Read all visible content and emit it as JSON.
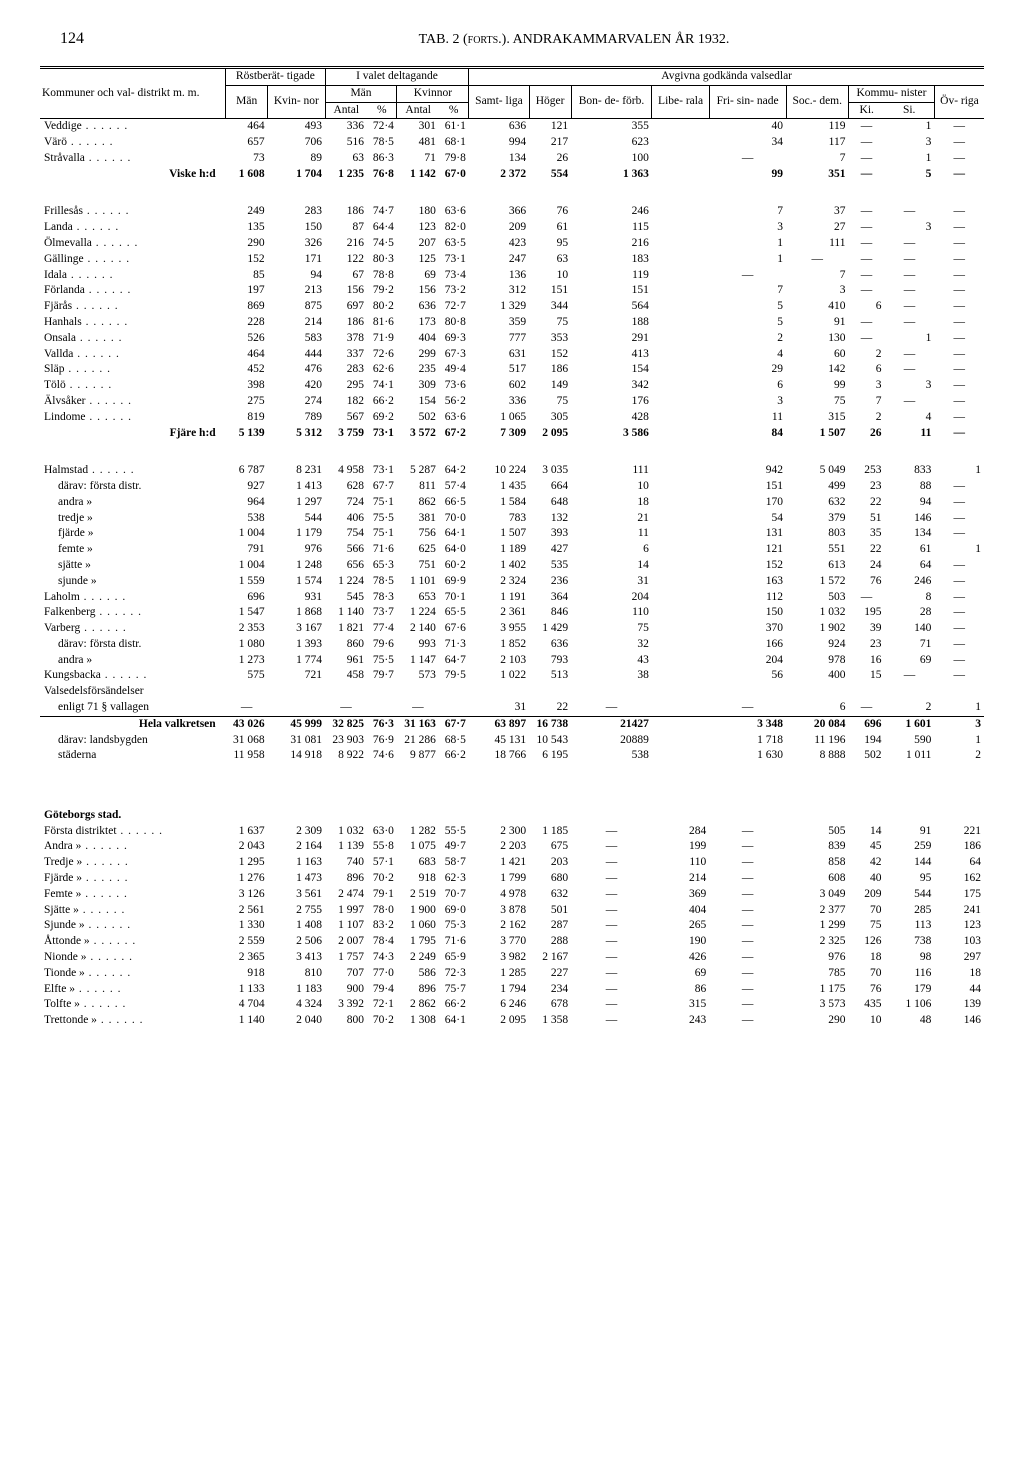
{
  "page_number": "124",
  "page_title": "TAB. 2 (forts.).  ANDRAKAMMARVALEN ÅR 1932.",
  "headers": {
    "group1": "Röstberät-\ntigade",
    "group2": "I valet deltagande",
    "group3": "Avgivna godkända valsedlar",
    "rowhead": "Kommuner och val-\ndistrikt m. m.",
    "man": "Män",
    "kvinnor": "Kvin-\nnor",
    "man2": "Män",
    "kvinnor2": "Kvinnor",
    "antal": "Antal",
    "pct": "%",
    "samtliga": "Samt-\nliga",
    "hoger": "Höger",
    "bonde": "Bon-\nde-\nförb.",
    "libe": "Libe-\nrala",
    "frisin": "Fri-\nsin-\nnade",
    "socdem": "Soc.-\ndem.",
    "kommun": "Kommu-\nnister",
    "ki": "Ki.",
    "si": "Si.",
    "ovriga": "Öv-\nriga"
  },
  "rows": [
    {
      "l": "Veddige",
      "c": [
        "464",
        "493",
        "336",
        "72·4",
        "301",
        "61·1",
        "636",
        "121",
        "355",
        "",
        "40",
        "119",
        "—",
        "1",
        "—"
      ]
    },
    {
      "l": "Värö",
      "c": [
        "657",
        "706",
        "516",
        "78·5",
        "481",
        "68·1",
        "994",
        "217",
        "623",
        "",
        "34",
        "117",
        "—",
        "3",
        "—"
      ]
    },
    {
      "l": "Stråvalla",
      "c": [
        "73",
        "89",
        "63",
        "86·3",
        "71",
        "79·8",
        "134",
        "26",
        "100",
        "",
        "—",
        "7",
        "—",
        "1",
        "—"
      ]
    },
    {
      "l": "Viske h:d",
      "bold": true,
      "indent": true,
      "c": [
        "1 608",
        "1 704",
        "1 235",
        "76·8",
        "1 142",
        "67·0",
        "2 372",
        "554",
        "1 363",
        "",
        "99",
        "351",
        "—",
        "5",
        "—"
      ]
    },
    {
      "gap": true
    },
    {
      "l": "Frillesås",
      "c": [
        "249",
        "283",
        "186",
        "74·7",
        "180",
        "63·6",
        "366",
        "76",
        "246",
        "",
        "7",
        "37",
        "—",
        "—",
        "—"
      ]
    },
    {
      "l": "Landa",
      "c": [
        "135",
        "150",
        "87",
        "64·4",
        "123",
        "82·0",
        "209",
        "61",
        "115",
        "",
        "3",
        "27",
        "—",
        "3",
        "—"
      ]
    },
    {
      "l": "Ölmevalla",
      "c": [
        "290",
        "326",
        "216",
        "74·5",
        "207",
        "63·5",
        "423",
        "95",
        "216",
        "",
        "1",
        "111",
        "—",
        "—",
        "—"
      ]
    },
    {
      "l": "Gällinge",
      "c": [
        "152",
        "171",
        "122",
        "80·3",
        "125",
        "73·1",
        "247",
        "63",
        "183",
        "",
        "1",
        "—",
        "—",
        "—",
        "—"
      ]
    },
    {
      "l": "Idala",
      "c": [
        "85",
        "94",
        "67",
        "78·8",
        "69",
        "73·4",
        "136",
        "10",
        "119",
        "",
        "—",
        "7",
        "—",
        "—",
        "—"
      ]
    },
    {
      "l": "Förlanda",
      "c": [
        "197",
        "213",
        "156",
        "79·2",
        "156",
        "73·2",
        "312",
        "151",
        "151",
        "",
        "7",
        "3",
        "—",
        "—",
        "—"
      ]
    },
    {
      "l": "Fjärås",
      "c": [
        "869",
        "875",
        "697",
        "80·2",
        "636",
        "72·7",
        "1 329",
        "344",
        "564",
        "",
        "5",
        "410",
        "6",
        "—",
        "—"
      ]
    },
    {
      "l": "Hanhals",
      "c": [
        "228",
        "214",
        "186",
        "81·6",
        "173",
        "80·8",
        "359",
        "75",
        "188",
        "",
        "5",
        "91",
        "—",
        "—",
        "—"
      ]
    },
    {
      "l": "Onsala",
      "c": [
        "526",
        "583",
        "378",
        "71·9",
        "404",
        "69·3",
        "777",
        "353",
        "291",
        "",
        "2",
        "130",
        "—",
        "1",
        "—"
      ]
    },
    {
      "l": "Vallda",
      "c": [
        "464",
        "444",
        "337",
        "72·6",
        "299",
        "67·3",
        "631",
        "152",
        "413",
        "",
        "4",
        "60",
        "2",
        "—",
        "—"
      ]
    },
    {
      "l": "Släp",
      "c": [
        "452",
        "476",
        "283",
        "62·6",
        "235",
        "49·4",
        "517",
        "186",
        "154",
        "",
        "29",
        "142",
        "6",
        "—",
        "—"
      ]
    },
    {
      "l": "Tölö",
      "c": [
        "398",
        "420",
        "295",
        "74·1",
        "309",
        "73·6",
        "602",
        "149",
        "342",
        "",
        "6",
        "99",
        "3",
        "3",
        "—"
      ]
    },
    {
      "l": "Älvsåker",
      "c": [
        "275",
        "274",
        "182",
        "66·2",
        "154",
        "56·2",
        "336",
        "75",
        "176",
        "",
        "3",
        "75",
        "7",
        "—",
        "—"
      ]
    },
    {
      "l": "Lindome",
      "c": [
        "819",
        "789",
        "567",
        "69·2",
        "502",
        "63·6",
        "1 065",
        "305",
        "428",
        "",
        "11",
        "315",
        "2",
        "4",
        "—"
      ]
    },
    {
      "l": "Fjäre h:d",
      "bold": true,
      "indent": true,
      "c": [
        "5 139",
        "5 312",
        "3 759",
        "73·1",
        "3 572",
        "67·2",
        "7 309",
        "2 095",
        "3 586",
        "",
        "84",
        "1 507",
        "26",
        "11",
        "—"
      ]
    },
    {
      "gap": true
    },
    {
      "l": "Halmstad",
      "c": [
        "6 787",
        "8 231",
        "4 958",
        "73·1",
        "5 287",
        "64·2",
        "10 224",
        "3 035",
        "111",
        "",
        "942",
        "5 049",
        "253",
        "833",
        "1"
      ]
    },
    {
      "l": "därav: första distr.",
      "sub": true,
      "c": [
        "927",
        "1 413",
        "628",
        "67·7",
        "811",
        "57·4",
        "1 435",
        "664",
        "10",
        "",
        "151",
        "499",
        "23",
        "88",
        "—"
      ]
    },
    {
      "l": "andra   »",
      "sub": true,
      "c": [
        "964",
        "1 297",
        "724",
        "75·1",
        "862",
        "66·5",
        "1 584",
        "648",
        "18",
        "",
        "170",
        "632",
        "22",
        "94",
        "—"
      ]
    },
    {
      "l": "tredje   »",
      "sub": true,
      "c": [
        "538",
        "544",
        "406",
        "75·5",
        "381",
        "70·0",
        "783",
        "132",
        "21",
        "",
        "54",
        "379",
        "51",
        "146",
        "—"
      ]
    },
    {
      "l": "fjärde   »",
      "sub": true,
      "c": [
        "1 004",
        "1 179",
        "754",
        "75·1",
        "756",
        "64·1",
        "1 507",
        "393",
        "11",
        "",
        "131",
        "803",
        "35",
        "134",
        "—"
      ]
    },
    {
      "l": "femte   »",
      "sub": true,
      "c": [
        "791",
        "976",
        "566",
        "71·6",
        "625",
        "64·0",
        "1 189",
        "427",
        "6",
        "",
        "121",
        "551",
        "22",
        "61",
        "1"
      ]
    },
    {
      "l": "sjätte   »",
      "sub": true,
      "c": [
        "1 004",
        "1 248",
        "656",
        "65·3",
        "751",
        "60·2",
        "1 402",
        "535",
        "14",
        "",
        "152",
        "613",
        "24",
        "64",
        "—"
      ]
    },
    {
      "l": "sjunde   »",
      "sub": true,
      "c": [
        "1 559",
        "1 574",
        "1 224",
        "78·5",
        "1 101",
        "69·9",
        "2 324",
        "236",
        "31",
        "",
        "163",
        "1 572",
        "76",
        "246",
        "—"
      ]
    },
    {
      "l": "Laholm",
      "c": [
        "696",
        "931",
        "545",
        "78·3",
        "653",
        "70·1",
        "1 191",
        "364",
        "204",
        "",
        "112",
        "503",
        "—",
        "8",
        "—"
      ]
    },
    {
      "l": "Falkenberg",
      "c": [
        "1 547",
        "1 868",
        "1 140",
        "73·7",
        "1 224",
        "65·5",
        "2 361",
        "846",
        "110",
        "",
        "150",
        "1 032",
        "195",
        "28",
        "—"
      ]
    },
    {
      "l": "Varberg",
      "c": [
        "2 353",
        "3 167",
        "1 821",
        "77·4",
        "2 140",
        "67·6",
        "3 955",
        "1 429",
        "75",
        "",
        "370",
        "1 902",
        "39",
        "140",
        "—"
      ]
    },
    {
      "l": "därav: första distr.",
      "sub": true,
      "c": [
        "1 080",
        "1 393",
        "860",
        "79·6",
        "993",
        "71·3",
        "1 852",
        "636",
        "32",
        "",
        "166",
        "924",
        "23",
        "71",
        "—"
      ]
    },
    {
      "l": "andra   »",
      "sub": true,
      "c": [
        "1 273",
        "1 774",
        "961",
        "75·5",
        "1 147",
        "64·7",
        "2 103",
        "793",
        "43",
        "",
        "204",
        "978",
        "16",
        "69",
        "—"
      ]
    },
    {
      "l": "Kungsbacka",
      "c": [
        "575",
        "721",
        "458",
        "79·7",
        "573",
        "79·5",
        "1 022",
        "513",
        "38",
        "",
        "56",
        "400",
        "15",
        "—",
        "—"
      ]
    },
    {
      "l": "Valsedelsförsändelser",
      "nodots": true,
      "c": [
        "",
        "",
        "",
        "",
        "",
        "",
        "",
        "",
        "",
        "",
        "",
        "",
        "",
        "",
        ""
      ]
    },
    {
      "l": "enligt 71 § vallagen",
      "nodots": true,
      "sub": true,
      "c": [
        "—",
        "",
        "—",
        "",
        "—",
        "",
        "31",
        "22",
        "—",
        "",
        "—",
        "6",
        "—",
        "2",
        "1"
      ]
    },
    {
      "l": "Hela valkretsen",
      "bold": true,
      "indent": true,
      "thick": true,
      "c": [
        "43 026",
        "45 999",
        "32 825",
        "76·3",
        "31 163",
        "67·7",
        "63 897",
        "16 738",
        "21427",
        "",
        "3 348",
        "20 084",
        "696",
        "1 601",
        "3"
      ]
    },
    {
      "l": "därav: landsbygden",
      "sub": true,
      "c": [
        "31 068",
        "31 081",
        "23 903",
        "76·9",
        "21 286",
        "68·5",
        "45 131",
        "10 543",
        "20889",
        "",
        "1 718",
        "11 196",
        "194",
        "590",
        "1"
      ]
    },
    {
      "l": "städerna",
      "sub": true,
      "c": [
        "11 958",
        "14 918",
        "8 922",
        "74·6",
        "9 877",
        "66·2",
        "18 766",
        "6 195",
        "538",
        "",
        "1 630",
        "8 888",
        "502",
        "1 011",
        "2"
      ]
    },
    {
      "gap": true
    },
    {
      "gap": true
    },
    {
      "l": "Göteborgs stad.",
      "bold": true,
      "nodots": true,
      "c": [
        "",
        "",
        "",
        "",
        "",
        "",
        "",
        "",
        "",
        "",
        "",
        "",
        "",
        "",
        ""
      ]
    },
    {
      "l": "Första   distriktet",
      "c": [
        "1 637",
        "2 309",
        "1 032",
        "63·0",
        "1 282",
        "55·5",
        "2 300",
        "1 185",
        "—",
        "284",
        "—",
        "505",
        "14",
        "91",
        "221"
      ]
    },
    {
      "l": "Andra      »",
      "c": [
        "2 043",
        "2 164",
        "1 139",
        "55·8",
        "1 075",
        "49·7",
        "2 203",
        "675",
        "—",
        "199",
        "—",
        "839",
        "45",
        "259",
        "186"
      ]
    },
    {
      "l": "Tredje      »",
      "c": [
        "1 295",
        "1 163",
        "740",
        "57·1",
        "683",
        "58·7",
        "1 421",
        "203",
        "—",
        "110",
        "—",
        "858",
        "42",
        "144",
        "64"
      ]
    },
    {
      "l": "Fjärde      »",
      "c": [
        "1 276",
        "1 473",
        "896",
        "70·2",
        "918",
        "62·3",
        "1 799",
        "680",
        "—",
        "214",
        "—",
        "608",
        "40",
        "95",
        "162"
      ]
    },
    {
      "l": "Femte      »",
      "c": [
        "3 126",
        "3 561",
        "2 474",
        "79·1",
        "2 519",
        "70·7",
        "4 978",
        "632",
        "—",
        "369",
        "—",
        "3 049",
        "209",
        "544",
        "175"
      ]
    },
    {
      "l": "Sjätte      »",
      "c": [
        "2 561",
        "2 755",
        "1 997",
        "78·0",
        "1 900",
        "69·0",
        "3 878",
        "501",
        "—",
        "404",
        "—",
        "2 377",
        "70",
        "285",
        "241"
      ]
    },
    {
      "l": "Sjunde      »",
      "c": [
        "1 330",
        "1 408",
        "1 107",
        "83·2",
        "1 060",
        "75·3",
        "2 162",
        "287",
        "—",
        "265",
        "—",
        "1 299",
        "75",
        "113",
        "123"
      ]
    },
    {
      "l": "Åttonde      »",
      "c": [
        "2 559",
        "2 506",
        "2 007",
        "78·4",
        "1 795",
        "71·6",
        "3 770",
        "288",
        "—",
        "190",
        "—",
        "2 325",
        "126",
        "738",
        "103"
      ]
    },
    {
      "l": "Nionde      »",
      "c": [
        "2 365",
        "3 413",
        "1 757",
        "74·3",
        "2 249",
        "65·9",
        "3 982",
        "2 167",
        "—",
        "426",
        "—",
        "976",
        "18",
        "98",
        "297"
      ]
    },
    {
      "l": "Tionde      »",
      "c": [
        "918",
        "810",
        "707",
        "77·0",
        "586",
        "72·3",
        "1 285",
        "227",
        "—",
        "69",
        "—",
        "785",
        "70",
        "116",
        "18"
      ]
    },
    {
      "l": "Elfte      »",
      "c": [
        "1 133",
        "1 183",
        "900",
        "79·4",
        "896",
        "75·7",
        "1 794",
        "234",
        "—",
        "86",
        "—",
        "1 175",
        "76",
        "179",
        "44"
      ]
    },
    {
      "l": "Tolfte      »",
      "c": [
        "4 704",
        "4 324",
        "3 392",
        "72·1",
        "2 862",
        "66·2",
        "6 246",
        "678",
        "—",
        "315",
        "—",
        "3 573",
        "435",
        "1 106",
        "139"
      ]
    },
    {
      "l": "Trettonde      »",
      "c": [
        "1 140",
        "2 040",
        "800",
        "70·2",
        "1 308",
        "64·1",
        "2 095",
        "1 358",
        "—",
        "243",
        "—",
        "290",
        "10",
        "48",
        "146"
      ]
    }
  ]
}
